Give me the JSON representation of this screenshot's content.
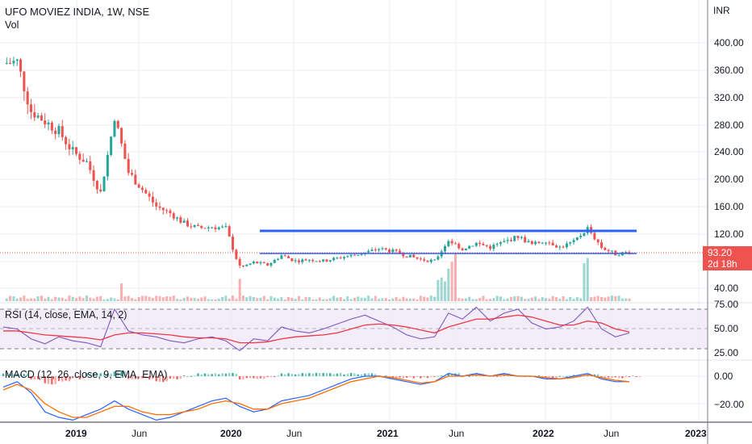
{
  "header": {
    "title": "UFO MOVIEZ INDIA, 1W, NSE",
    "volume_label": "Vol"
  },
  "price_axis": {
    "currency": "INR",
    "ticks": [
      "400.00",
      "360.00",
      "320.00",
      "280.00",
      "240.00",
      "200.00",
      "160.00",
      "120.00",
      "40.00"
    ],
    "last_price": "93.20",
    "countdown": "2d 18h"
  },
  "rsi": {
    "label": "RSI (14, close, EMA, 14, 2)",
    "ticks": [
      "75.00",
      "50.00",
      "25.00"
    ]
  },
  "macd": {
    "label": "MACD (12, 26, close, 9, EMA, EMA)",
    "ticks": [
      "0.00",
      "−20.00"
    ]
  },
  "time_axis": {
    "ticks": [
      "2019",
      "Jun",
      "2020",
      "Jun",
      "2021",
      "Jun",
      "2022",
      "Jun",
      "2023"
    ]
  },
  "colors": {
    "up": "#26a69a",
    "down": "#ef5350",
    "trendline": "#2962ff",
    "rsi_line": "#7e57c2",
    "rsi_ma": "#f23645",
    "macd_line": "#2962ff",
    "signal_line": "#ff6d00",
    "rsi_band": "#ede7f6"
  },
  "chart_data": [
    {
      "type": "candlestick",
      "title": "UFO MOVIEZ INDIA, 1W, NSE",
      "xlabel": "",
      "ylabel": "INR",
      "ylim": [
        30,
        420
      ],
      "grid": true,
      "x": [
        "2018-10",
        "2018-11",
        "2018-12",
        "2019-01",
        "2019-02",
        "2019-03",
        "2019-04",
        "2019-05",
        "2019-06",
        "2019-07",
        "2019-08",
        "2019-09",
        "2019-10",
        "2019-11",
        "2019-12",
        "2020-01",
        "2020-02",
        "2020-03",
        "2020-04",
        "2020-05",
        "2020-06",
        "2020-07",
        "2020-08",
        "2020-09",
        "2020-10",
        "2020-11",
        "2020-12",
        "2021-01",
        "2021-02",
        "2021-03",
        "2021-04",
        "2021-05",
        "2021-06",
        "2021-07",
        "2021-08",
        "2021-09",
        "2021-10",
        "2021-11",
        "2021-12",
        "2022-01",
        "2022-02",
        "2022-03",
        "2022-04",
        "2022-05",
        "2022-06",
        "2022-07"
      ],
      "close_approx": [
        370,
        372,
        300,
        285,
        270,
        240,
        225,
        180,
        290,
        210,
        185,
        160,
        150,
        135,
        128,
        130,
        128,
        70,
        78,
        74,
        88,
        80,
        82,
        80,
        84,
        88,
        92,
        98,
        94,
        88,
        82,
        80,
        110,
        98,
        106,
        100,
        108,
        116,
        104,
        110,
        100,
        108,
        128,
        100,
        90,
        93.2
      ],
      "annotations": [
        {
          "type": "horizontal_ray",
          "name": "resistance",
          "value": 124,
          "from": "2020-03",
          "to": "2022-07",
          "color": "#2962ff"
        },
        {
          "type": "horizontal_ray",
          "name": "support",
          "value": 93,
          "from": "2020-03",
          "to": "2022-07",
          "color": "#2962ff"
        },
        {
          "type": "price_line",
          "value": 93.2,
          "label": "93.20"
        }
      ]
    },
    {
      "type": "bar",
      "title": "Vol",
      "note": "volume histogram, colored by candle direction; spikes around 2020-03, 2021-05/06, 2022-04"
    },
    {
      "type": "line",
      "title": "RSI (14, close, EMA, 14, 2)",
      "ylim": [
        20,
        80
      ],
      "bands": [
        30,
        50,
        70
      ],
      "series": [
        {
          "name": "RSI",
          "values_approx": [
            52,
            50,
            40,
            35,
            42,
            38,
            36,
            32,
            70,
            48,
            44,
            42,
            38,
            36,
            40,
            42,
            38,
            28,
            40,
            38,
            52,
            48,
            46,
            50,
            55,
            60,
            64,
            58,
            52,
            44,
            40,
            42,
            66,
            60,
            72,
            58,
            66,
            70,
            56,
            50,
            52,
            58,
            72,
            50,
            42,
            46
          ]
        },
        {
          "name": "RSI MA",
          "values_approx": [
            48,
            48,
            46,
            44,
            43,
            42,
            41,
            39,
            44,
            46,
            46,
            45,
            44,
            42,
            41,
            41,
            40,
            36,
            36,
            37,
            40,
            42,
            43,
            44,
            46,
            50,
            54,
            55,
            54,
            52,
            49,
            46,
            52,
            56,
            60,
            60,
            62,
            64,
            62,
            58,
            54,
            54,
            58,
            56,
            50,
            47
          ]
        }
      ]
    },
    {
      "type": "line",
      "title": "MACD (12, 26, close, 9, EMA, EMA)",
      "ylim": [
        -40,
        10
      ],
      "series": [
        {
          "name": "MACD",
          "values_approx": [
            -8,
            -4,
            -12,
            -26,
            -30,
            -32,
            -28,
            -24,
            -18,
            -24,
            -28,
            -32,
            -30,
            -26,
            -22,
            -18,
            -16,
            -22,
            -26,
            -24,
            -18,
            -16,
            -14,
            -10,
            -6,
            -2,
            0,
            0,
            -2,
            -4,
            -6,
            -4,
            2,
            0,
            2,
            0,
            2,
            0,
            0,
            -2,
            -2,
            0,
            2,
            -2,
            -4,
            -4
          ]
        },
        {
          "name": "Signal",
          "values_approx": [
            -10,
            -6,
            -10,
            -20,
            -26,
            -30,
            -30,
            -26,
            -22,
            -22,
            -26,
            -28,
            -28,
            -26,
            -24,
            -20,
            -18,
            -20,
            -24,
            -24,
            -20,
            -18,
            -16,
            -12,
            -8,
            -4,
            -2,
            0,
            -1,
            -3,
            -5,
            -4,
            0,
            0,
            1,
            0,
            1,
            0,
            0,
            -1,
            -2,
            -1,
            1,
            -1,
            -3,
            -4
          ]
        },
        {
          "name": "Histogram",
          "note": "alternating green/red bars around zero"
        }
      ]
    }
  ]
}
